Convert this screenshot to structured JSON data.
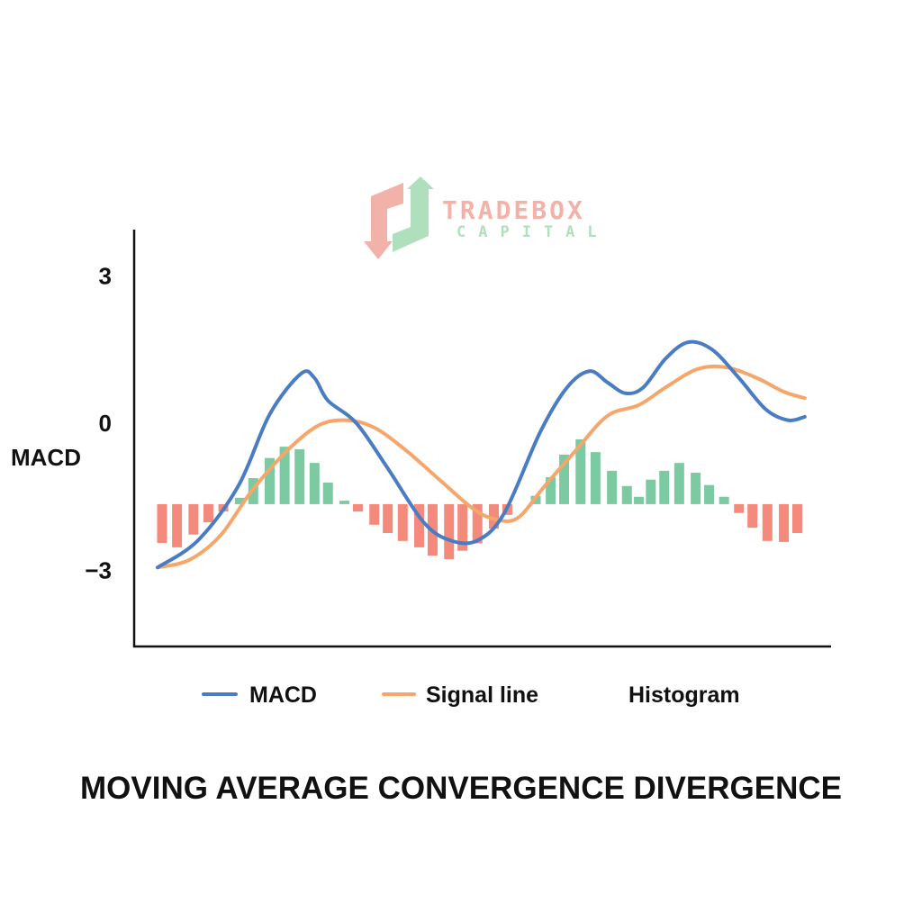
{
  "logo": {
    "line1": "TRADEBOX",
    "line2": "CAPITAL"
  },
  "chart_data": {
    "type": "line",
    "title": "MOVING AVERAGE CONVERGENCE DIVERGENCE",
    "ylabel": "MACD",
    "xlabel": "",
    "yticks": [
      {
        "value": 3,
        "label": "3"
      },
      {
        "value": 0,
        "label": "0"
      },
      {
        "value": -3,
        "label": "−3"
      }
    ],
    "ylim": [
      -4.5,
      3.9
    ],
    "xlim": [
      -1.9,
      44.7
    ],
    "grid": false,
    "legend_position": "bottom",
    "histogram_baseline": -1.65,
    "colors": {
      "macd": "#4a7cc4",
      "signal": "#f5a66b",
      "hist_pos": "#7ccaa2",
      "hist_neg": "#f48a7c"
    },
    "series": [
      {
        "name": "MACD",
        "key": "macd",
        "points": [
          [
            -0.3,
            -2.94
          ],
          [
            2.4,
            -2.39
          ],
          [
            5.1,
            -1.28
          ],
          [
            7.2,
            0.18
          ],
          [
            9.3,
            1.01
          ],
          [
            10.2,
            0.92
          ],
          [
            11.1,
            0.46
          ],
          [
            13.0,
            0.0
          ],
          [
            15.1,
            -0.92
          ],
          [
            17.5,
            -2.02
          ],
          [
            19.3,
            -2.39
          ],
          [
            21.1,
            -2.39
          ],
          [
            22.9,
            -1.83
          ],
          [
            25.3,
            -0.18
          ],
          [
            27.1,
            0.73
          ],
          [
            28.6,
            1.06
          ],
          [
            29.8,
            0.83
          ],
          [
            31.0,
            0.61
          ],
          [
            32.2,
            0.73
          ],
          [
            33.7,
            1.32
          ],
          [
            35.2,
            1.65
          ],
          [
            36.8,
            1.5
          ],
          [
            38.6,
            0.92
          ],
          [
            40.4,
            0.28
          ],
          [
            41.9,
            0.06
          ],
          [
            43.0,
            0.13
          ]
        ]
      },
      {
        "name": "Signal line",
        "key": "signal",
        "points": [
          [
            -0.3,
            -2.94
          ],
          [
            1.8,
            -2.79
          ],
          [
            3.9,
            -2.29
          ],
          [
            6.0,
            -1.38
          ],
          [
            8.4,
            -0.55
          ],
          [
            10.5,
            -0.04
          ],
          [
            12.4,
            0.06
          ],
          [
            14.2,
            -0.09
          ],
          [
            16.3,
            -0.55
          ],
          [
            18.7,
            -1.19
          ],
          [
            20.8,
            -1.74
          ],
          [
            22.3,
            -1.96
          ],
          [
            23.8,
            -1.93
          ],
          [
            25.6,
            -1.28
          ],
          [
            27.7,
            -0.55
          ],
          [
            29.8,
            0.15
          ],
          [
            31.9,
            0.37
          ],
          [
            33.7,
            0.73
          ],
          [
            35.8,
            1.1
          ],
          [
            37.7,
            1.14
          ],
          [
            39.8,
            0.92
          ],
          [
            41.6,
            0.64
          ],
          [
            43.0,
            0.51
          ]
        ]
      },
      {
        "name": "Histogram",
        "key": "histogram",
        "points": [
          [
            0,
            -0.79
          ],
          [
            1.0,
            -0.88
          ],
          [
            2.1,
            -0.62
          ],
          [
            3.1,
            -0.37
          ],
          [
            4.1,
            -0.15
          ],
          [
            5.2,
            0.13
          ],
          [
            6.1,
            0.53
          ],
          [
            7.2,
            0.94
          ],
          [
            8.2,
            1.17
          ],
          [
            9.2,
            1.12
          ],
          [
            10.2,
            0.84
          ],
          [
            11.1,
            0.44
          ],
          [
            12.2,
            0.07
          ],
          [
            13.1,
            -0.15
          ],
          [
            14.2,
            -0.42
          ],
          [
            15.1,
            -0.59
          ],
          [
            16.1,
            -0.75
          ],
          [
            17.2,
            -0.88
          ],
          [
            18.1,
            -1.05
          ],
          [
            19.2,
            -1.12
          ],
          [
            20.1,
            -0.95
          ],
          [
            21.1,
            -0.8
          ],
          [
            22.2,
            -0.5
          ],
          [
            23.1,
            -0.22
          ],
          [
            25.0,
            0.17
          ],
          [
            26.0,
            0.55
          ],
          [
            26.9,
            1.01
          ],
          [
            28.0,
            1.32
          ],
          [
            29.0,
            1.06
          ],
          [
            30.1,
            0.68
          ],
          [
            31.1,
            0.37
          ],
          [
            31.9,
            0.15
          ],
          [
            32.7,
            0.5
          ],
          [
            33.6,
            0.68
          ],
          [
            34.6,
            0.84
          ],
          [
            35.7,
            0.64
          ],
          [
            36.6,
            0.39
          ],
          [
            37.6,
            0.15
          ],
          [
            38.6,
            -0.18
          ],
          [
            39.5,
            -0.48
          ],
          [
            40.5,
            -0.75
          ],
          [
            41.6,
            -0.77
          ],
          [
            42.5,
            -0.59
          ]
        ]
      }
    ]
  }
}
